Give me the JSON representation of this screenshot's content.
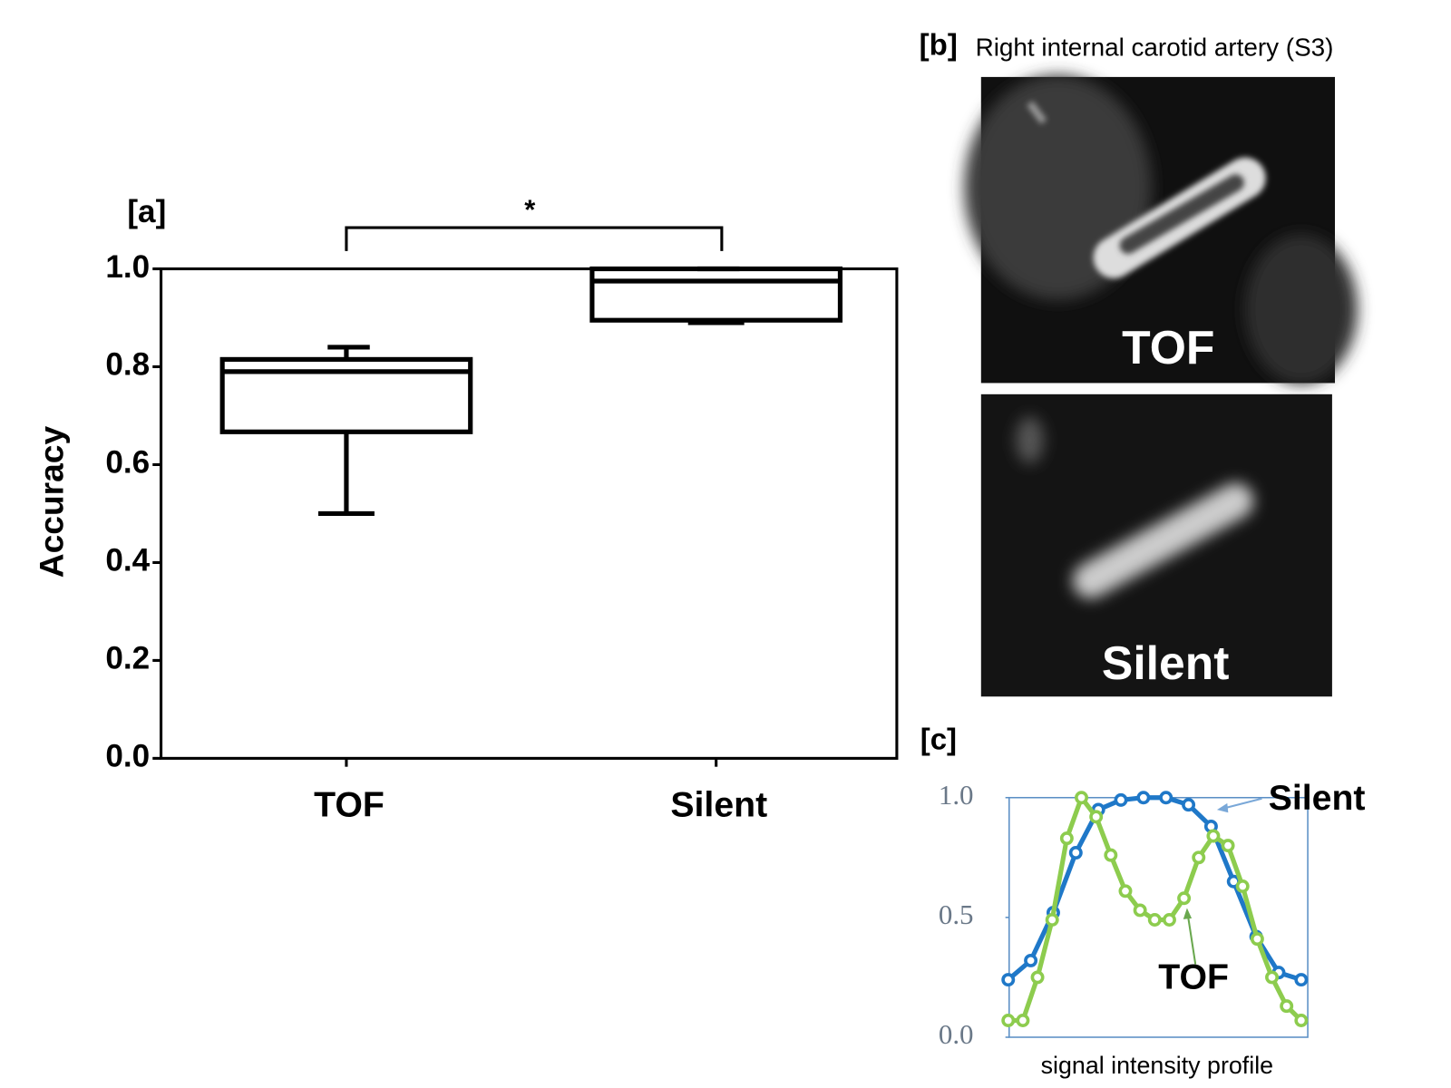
{
  "chart_data": [
    {
      "type": "box",
      "label": "[a]",
      "ylabel": "Accuracy",
      "categories": [
        "TOF",
        "Silent"
      ],
      "boxes": [
        {
          "min": 0.5,
          "q1": 0.667,
          "median": 0.79,
          "q3": 0.815,
          "max": 0.84
        },
        {
          "min": 0.89,
          "q1": 0.895,
          "median": 0.975,
          "q3": 1.0,
          "max": 1.0
        }
      ],
      "annotation": "*",
      "color": "#000000",
      "ylim": [
        0,
        1.0
      ],
      "yticks": [
        {
          "value": 0,
          "label": "0.0"
        },
        {
          "value": 0.2,
          "label": "0.2"
        },
        {
          "value": 0.4,
          "label": "0.4"
        },
        {
          "value": 0.6,
          "label": "0.6"
        },
        {
          "value": 0.8,
          "label": "0.8"
        },
        {
          "value": 1,
          "label": "1.0"
        }
      ]
    },
    {
      "type": "line",
      "label": "[c]",
      "xlabel": "signal intensity profile",
      "series": [
        {
          "name": "Silent",
          "color": "#1f78c8",
          "values": [
            0.24,
            0.32,
            0.52,
            0.77,
            0.95,
            0.99,
            1.0,
            1.0,
            0.97,
            0.88,
            0.65,
            0.42,
            0.27,
            0.24
          ]
        },
        {
          "name": "TOF",
          "color": "#8dcc4e",
          "values": [
            0.07,
            0.07,
            0.25,
            0.49,
            0.83,
            1.0,
            0.92,
            0.76,
            0.61,
            0.53,
            0.49,
            0.49,
            0.58,
            0.75,
            0.84,
            0.8,
            0.63,
            0.41,
            0.25,
            0.13,
            0.07
          ]
        }
      ],
      "ylim": [
        0,
        1.0
      ],
      "yticks": [
        {
          "value": 0,
          "label": "0.0"
        },
        {
          "value": 0.5,
          "label": "0.5"
        },
        {
          "value": 1,
          "label": "1.0"
        }
      ]
    }
  ],
  "panel_b": {
    "label": "[b]",
    "title": "Right internal carotid artery (S3)",
    "images": [
      "TOF",
      "Silent"
    ]
  }
}
